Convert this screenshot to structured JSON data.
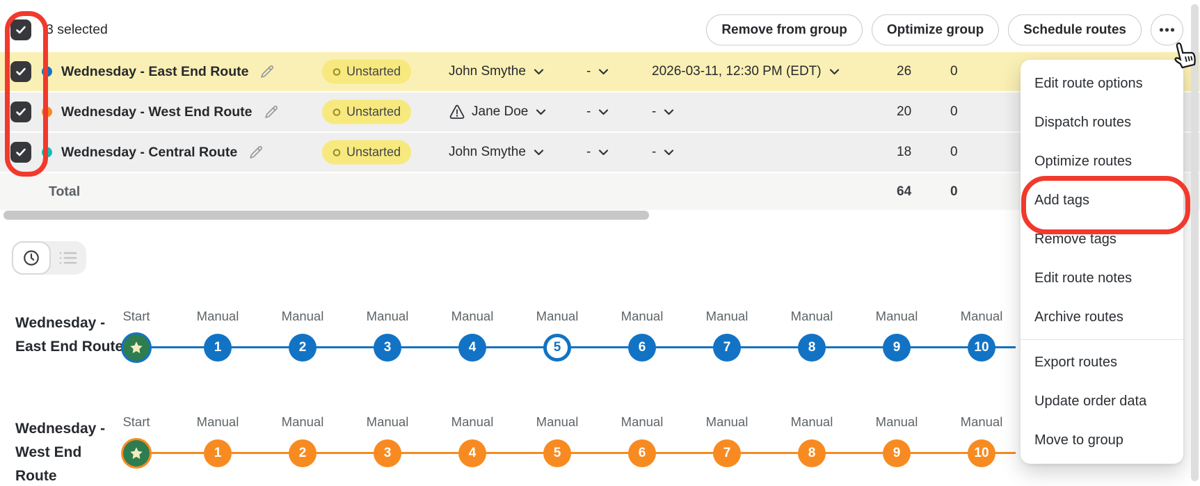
{
  "colors": {
    "annotation_red": "#F1392C",
    "highlight_row_bg": "#FAF0B5",
    "row_bg": "#EFEFEF",
    "total_row_bg": "#F6F6F4",
    "badge_bg": "#F8E97E",
    "badge_icon": "#93892E",
    "start_green": "#2E7D50",
    "star_yellow": "#F2ECC0"
  },
  "toolbar": {
    "selected_count": "3 selected",
    "buttons": [
      "Remove from group",
      "Optimize group",
      "Schedule routes"
    ],
    "more_icon": "ellipsis"
  },
  "table": {
    "rows": [
      {
        "name": "Wednesday - East End Route",
        "color": "#1273C4",
        "status": "Unstarted",
        "assignee": "John Smythe",
        "assignee_warning": false,
        "slot1": "-",
        "schedule": "2026-03-11, 12:30 PM (EDT)",
        "stops_count": "26",
        "second_count": "0",
        "highlighted": true,
        "checked": true
      },
      {
        "name": "Wednesday - West End Route",
        "color": "#F78B21",
        "status": "Unstarted",
        "assignee": "Jane Doe",
        "assignee_warning": true,
        "slot1": "-",
        "schedule": "-",
        "stops_count": "20",
        "second_count": "0",
        "highlighted": false,
        "checked": true
      },
      {
        "name": "Wednesday - Central Route",
        "color": "#12BFB4",
        "status": "Unstarted",
        "assignee": "John Smythe",
        "assignee_warning": false,
        "slot1": "-",
        "schedule": "-",
        "stops_count": "18",
        "second_count": "0",
        "highlighted": false,
        "checked": true
      }
    ],
    "total": {
      "label": "Total",
      "stops_count": "64",
      "second_count": "0"
    }
  },
  "menu": {
    "items": [
      {
        "label": "Edit route options",
        "annotated": false,
        "divider_after": false
      },
      {
        "label": "Dispatch routes",
        "annotated": false,
        "divider_after": false
      },
      {
        "label": "Optimize routes",
        "annotated": false,
        "divider_after": false
      },
      {
        "label": "Add tags",
        "annotated": true,
        "divider_after": false
      },
      {
        "label": "Remove tags",
        "annotated": false,
        "divider_after": false
      },
      {
        "label": "Edit route notes",
        "annotated": false,
        "divider_after": false
      },
      {
        "label": "Archive routes",
        "annotated": false,
        "divider_after": true
      },
      {
        "label": "Export routes",
        "annotated": false,
        "divider_after": false
      },
      {
        "label": "Update order data",
        "annotated": false,
        "divider_after": false
      },
      {
        "label": "Move to group",
        "annotated": false,
        "divider_after": false
      }
    ]
  },
  "timeline": {
    "routes": [
      {
        "name": "Wednesday - East End Route",
        "color": "#1273C4",
        "start_label": "Start",
        "stop_type_label": "Manual",
        "stop_numbers": [
          "1",
          "2",
          "3",
          "4",
          "5",
          "6",
          "7",
          "8",
          "9",
          "10"
        ],
        "outlined_stop": "5"
      },
      {
        "name": "Wednesday - West End Route",
        "color": "#F78B21",
        "start_label": "Start",
        "stop_type_label": "Manual",
        "stop_numbers": [
          "1",
          "2",
          "3",
          "4",
          "5",
          "6",
          "7",
          "8",
          "9",
          "10"
        ],
        "outlined_stop": ""
      }
    ]
  }
}
